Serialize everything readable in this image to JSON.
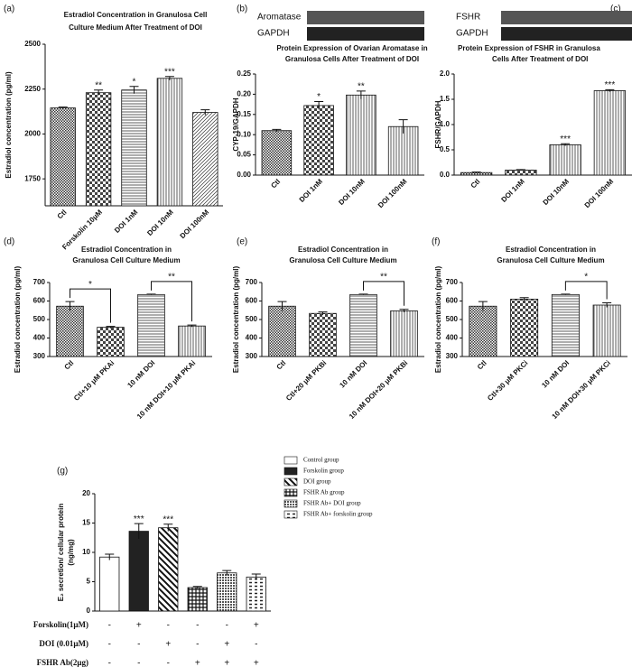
{
  "chart_data": [
    {
      "label": "(a)",
      "type": "bar",
      "title": [
        "Estradiol Concentration in Granulosa Cell",
        "Culture Medium After Treatment of DOI"
      ],
      "ylabel": [
        "Estradiol concentration (pg/ml)"
      ],
      "categories": [
        "Ctl",
        "Forskolin 10μM",
        "DOI 1nM",
        "DOI 10nM",
        "DOI 100nM"
      ],
      "values": [
        2145,
        2230,
        2245,
        2310,
        2120
      ],
      "errors": [
        5,
        15,
        20,
        10,
        15
      ],
      "annotations": [
        null,
        "**",
        "*",
        "***",
        null
      ],
      "patterns": [
        "checker",
        "check",
        "hlines",
        "vlines",
        "diag"
      ],
      "ylim": [
        1600,
        2500
      ],
      "yticks": [
        1750,
        2000,
        2250,
        2500
      ]
    },
    {
      "label": "(b)",
      "type": "bar",
      "blot": [
        "Aromatase",
        "GAPDH"
      ],
      "title": [
        "Protein Expression of Ovarian Aromatase in",
        "Granulosa Cells After Treatment of DOI"
      ],
      "ylabel": [
        "CYP-19/GAPDH"
      ],
      "categories": [
        "Ctl",
        "DOI 1nM",
        "DOI 10nM",
        "DOI 100nM"
      ],
      "values": [
        0.11,
        0.172,
        0.198,
        0.12
      ],
      "errors": [
        0.003,
        0.01,
        0.01,
        0.017
      ],
      "annotations": [
        null,
        "*",
        "**",
        null
      ],
      "patterns": [
        "checker",
        "check",
        "vlines",
        "vlines"
      ],
      "ylim": [
        0,
        0.25
      ],
      "yticks": [
        {
          "value": 0,
          "label": "0.00"
        },
        {
          "value": 0.05,
          "label": "0.05"
        },
        {
          "value": 0.1,
          "label": "0.10"
        },
        {
          "value": 0.15,
          "label": "0.15"
        },
        {
          "value": 0.2,
          "label": "0.20"
        },
        {
          "value": 0.25,
          "label": "0.25"
        }
      ]
    },
    {
      "label": "(c)",
      "type": "bar",
      "blot": [
        "FSHR",
        "GAPDH"
      ],
      "title": [
        "Protein Expression of FSHR in Granulosa",
        "Cells After Treatment of DOI"
      ],
      "ylabel": [
        "FSHR/GAPDH"
      ],
      "categories": [
        "Ctl",
        "DOI 1nM",
        "DOI 10nM",
        "DOI 100nM"
      ],
      "values": [
        0.05,
        0.1,
        0.6,
        1.67
      ],
      "errors": [
        0.01,
        0.01,
        0.02,
        0.02
      ],
      "annotations": [
        null,
        null,
        "***",
        "***"
      ],
      "patterns": [
        "checker",
        "check",
        "vlines",
        "vlines"
      ],
      "ylim": [
        0,
        2
      ],
      "yticks": [
        {
          "value": 0,
          "label": "0.0"
        },
        {
          "value": 0.5,
          "label": "0.5"
        },
        {
          "value": 1,
          "label": "1.0"
        },
        {
          "value": 1.5,
          "label": "1.5"
        },
        {
          "value": 2,
          "label": "2.0"
        }
      ]
    },
    {
      "label": "(d)",
      "type": "bar",
      "title": [
        "Estradiol Concentration in",
        "Granulosa Cell Culture Medium"
      ],
      "ylabel": [
        "Estradiol concentration (pg/ml)"
      ],
      "categories": [
        "Ctl",
        "Ctl+10 μM PKAi",
        "10 nM DOI",
        "10 nM DOI+10 μM PKAi"
      ],
      "values": [
        572,
        458,
        635,
        465
      ],
      "errors": [
        25,
        5,
        2,
        5
      ],
      "brackets": [
        {
          "bars": [
            0,
            1
          ],
          "label": "*"
        },
        {
          "bars": [
            2,
            3
          ],
          "label": "**"
        }
      ],
      "patterns": [
        "checker",
        "check",
        "hlines",
        "vlines"
      ],
      "ylim": [
        300,
        700
      ],
      "yticks": [
        300,
        400,
        500,
        600,
        700
      ]
    },
    {
      "label": "(e)",
      "type": "bar",
      "title": [
        "Estradiol Concentration in",
        "Granulosa Cell Culture Medium"
      ],
      "ylabel": [
        "Estradiol concentration (pg/ml)"
      ],
      "categories": [
        "Ctl",
        "Ctl+20 μM PKBi",
        "10 nM DOI",
        "10 nM DOI+20 μM PKBi"
      ],
      "values": [
        572,
        533,
        635,
        547
      ],
      "errors": [
        25,
        8,
        2,
        8
      ],
      "brackets": [
        {
          "bars": [
            2,
            3
          ],
          "label": "**"
        }
      ],
      "patterns": [
        "checker",
        "check",
        "hlines",
        "vlines"
      ],
      "ylim": [
        300,
        700
      ],
      "yticks": [
        300,
        400,
        500,
        600,
        700
      ]
    },
    {
      "label": "(f)",
      "type": "bar",
      "title": [
        "Estradiol Concentration in",
        "Granulosa Cell Culture Medium"
      ],
      "ylabel": [
        "Estradiol concentration (pg/ml)"
      ],
      "categories": [
        "Ctl",
        "Ctl+30 μM PKCi",
        "10 nM DOI",
        "10 nM DOI+30 μM PKCi"
      ],
      "values": [
        572,
        610,
        635,
        578
      ],
      "errors": [
        25,
        8,
        2,
        12
      ],
      "brackets": [
        {
          "bars": [
            2,
            3
          ],
          "label": "*"
        }
      ],
      "patterns": [
        "checker",
        "check",
        "hlines",
        "vlines"
      ],
      "ylim": [
        300,
        700
      ],
      "yticks": [
        300,
        400,
        500,
        600,
        700
      ]
    },
    {
      "label": "(g)",
      "type": "bar",
      "ylabel": [
        "E₂ secretion/ cellular protein",
        "(ng/mg)"
      ],
      "legend": [
        "Control group",
        "Forskolin group",
        "DOI group",
        "FSHR Ab group",
        "FSHR Ab+ DOI group",
        "FSHR Ab+ forskolin group"
      ],
      "values": [
        9.2,
        13.6,
        14.2,
        4.0,
        6.5,
        5.8
      ],
      "errors": [
        0.5,
        1.3,
        0.6,
        0.2,
        0.4,
        0.5
      ],
      "annotations": [
        null,
        "***",
        "***",
        null,
        null,
        null
      ],
      "patterns": [
        "white",
        "black",
        "diagbold",
        "grid",
        "dots",
        "dashes"
      ],
      "ylim": [
        0,
        20
      ],
      "yticks": [
        0,
        5,
        10,
        15,
        20
      ],
      "conditions": [
        {
          "name": "Forskolin(1μM)",
          "marks": [
            "-",
            "+",
            "-",
            "-",
            "-",
            "+"
          ]
        },
        {
          "name": "DOI (0.01μM)",
          "marks": [
            "-",
            "-",
            "+",
            "-",
            "+",
            "-"
          ]
        },
        {
          "name": "FSHR Ab(2μg)",
          "marks": [
            "-",
            "-",
            "-",
            "+",
            "+",
            "+"
          ]
        }
      ]
    }
  ]
}
